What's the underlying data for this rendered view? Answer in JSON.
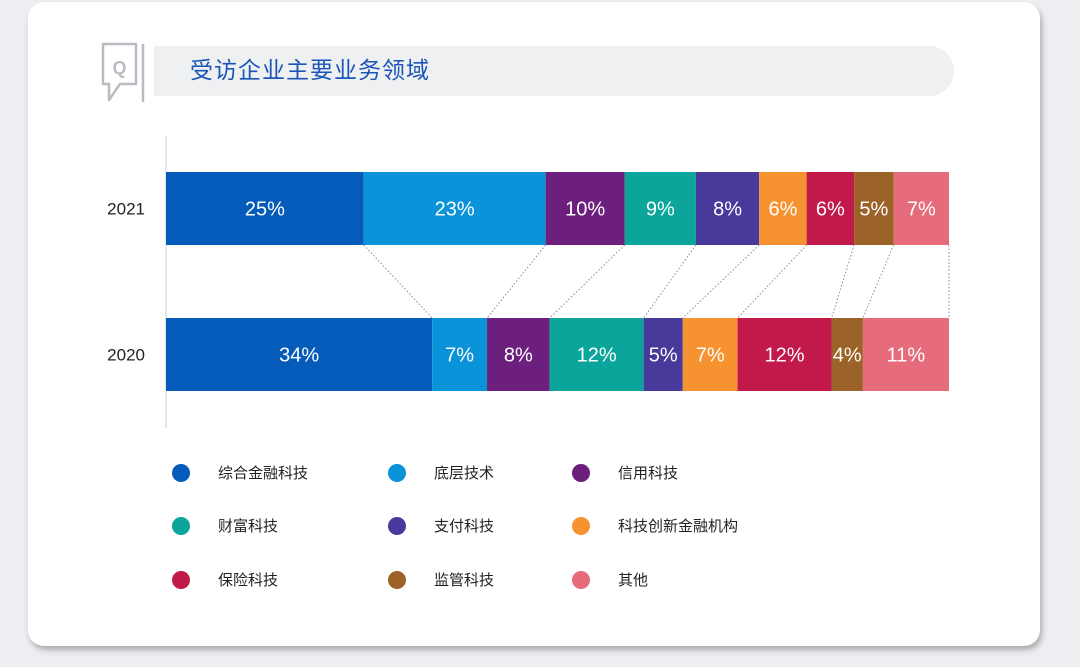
{
  "title": "受访企业主要业务领域",
  "colors": {
    "title": "#1a55b7",
    "card": "#ffffff",
    "title_bar": "#eff0f2"
  },
  "chart_data": {
    "type": "bar",
    "orientation": "horizontal",
    "stacked": true,
    "percent": true,
    "categories": [
      "2021",
      "2020"
    ],
    "series": [
      {
        "name": "综合金融科技",
        "color": "#055bb9",
        "values": [
          25,
          34
        ]
      },
      {
        "name": "底层技术",
        "color": "#0a93d9",
        "values": [
          23,
          7
        ]
      },
      {
        "name": "信用科技",
        "color": "#6c1f7c",
        "values": [
          10,
          8
        ]
      },
      {
        "name": "财富科技",
        "color": "#0ca59b",
        "values": [
          9,
          12
        ]
      },
      {
        "name": "支付科技",
        "color": "#473a9b",
        "values": [
          8,
          5
        ]
      },
      {
        "name": "科技创新金融机构",
        "color": "#f6922f",
        "values": [
          6,
          7
        ]
      },
      {
        "name": "保险科技",
        "color": "#c2194b",
        "values": [
          6,
          12
        ]
      },
      {
        "name": "监管科技",
        "color": "#9c6329",
        "values": [
          5,
          4
        ]
      },
      {
        "name": "其他",
        "color": "#e66b7b",
        "values": [
          7,
          11
        ]
      }
    ],
    "data_labels": true,
    "legend_position": "bottom",
    "grid": false
  }
}
